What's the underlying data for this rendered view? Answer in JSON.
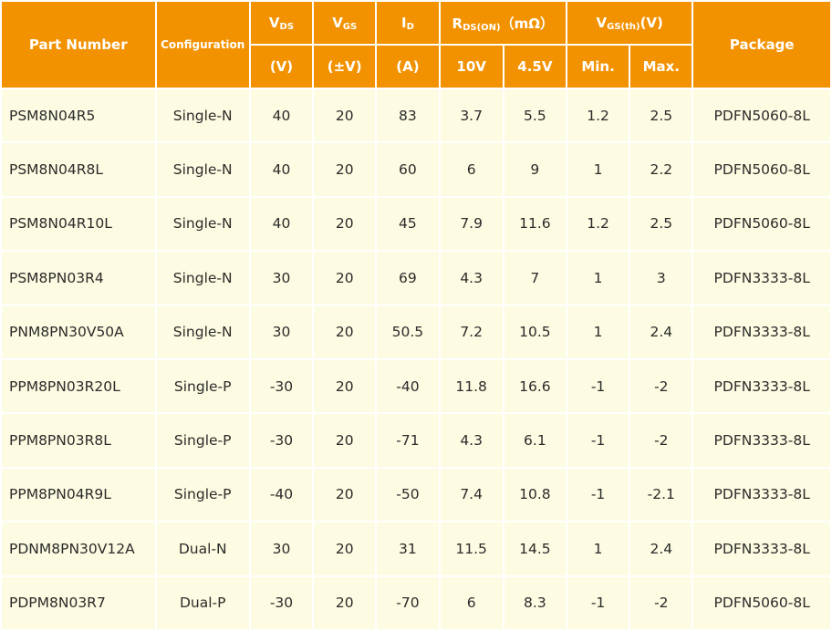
{
  "header": {
    "part_number": "Part Number",
    "configuration": "Configuration",
    "vds": {
      "main": "V",
      "sub": "DS",
      "unit": "(V)"
    },
    "vgs": {
      "main": "V",
      "sub": "GS",
      "unit": "(±V)"
    },
    "id": {
      "main": "I",
      "sub": "D",
      "unit": "(A)"
    },
    "rds": {
      "main": "R",
      "sub": "DS(ON)",
      "suffix": "（mΩ）",
      "col_10v": "10V",
      "col_45v": "4.5V"
    },
    "vgsth": {
      "main": "V",
      "sub": "GS(th)",
      "suffix": "(V)",
      "min": "Min.",
      "max": "Max."
    },
    "package": "Package"
  },
  "rows": [
    {
      "part": "PSM8N04R5",
      "config": "Single-N",
      "vds": "40",
      "vgs": "20",
      "id": "83",
      "r10": "3.7",
      "r45": "5.5",
      "vmin": "1.2",
      "vmax": "2.5",
      "pkg": "PDFN5060-8L"
    },
    {
      "part": "PSM8N04R8L",
      "config": "Single-N",
      "vds": "40",
      "vgs": "20",
      "id": "60",
      "r10": "6",
      "r45": "9",
      "vmin": "1",
      "vmax": "2.2",
      "pkg": "PDFN5060-8L"
    },
    {
      "part": "PSM8N04R10L",
      "config": "Single-N",
      "vds": "40",
      "vgs": "20",
      "id": "45",
      "r10": "7.9",
      "r45": "11.6",
      "vmin": "1.2",
      "vmax": "2.5",
      "pkg": "PDFN5060-8L"
    },
    {
      "part": "PSM8PN03R4",
      "config": "Single-N",
      "vds": "30",
      "vgs": "20",
      "id": "69",
      "r10": "4.3",
      "r45": "7",
      "vmin": "1",
      "vmax": "3",
      "pkg": "PDFN3333-8L"
    },
    {
      "part": "PNM8PN30V50A",
      "config": "Single-N",
      "vds": "30",
      "vgs": "20",
      "id": "50.5",
      "r10": "7.2",
      "r45": "10.5",
      "vmin": "1",
      "vmax": "2.4",
      "pkg": "PDFN3333-8L"
    },
    {
      "part": "PPM8PN03R20L",
      "config": "Single-P",
      "vds": "-30",
      "vgs": "20",
      "id": "-40",
      "r10": "11.8",
      "r45": "16.6",
      "vmin": "-1",
      "vmax": "-2",
      "pkg": "PDFN3333-8L"
    },
    {
      "part": "PPM8PN03R8L",
      "config": "Single-P",
      "vds": "-30",
      "vgs": "20",
      "id": "-71",
      "r10": "4.3",
      "r45": "6.1",
      "vmin": "-1",
      "vmax": "-2",
      "pkg": "PDFN3333-8L"
    },
    {
      "part": "PPM8PN04R9L",
      "config": "Single-P",
      "vds": "-40",
      "vgs": "20",
      "id": "-50",
      "r10": "7.4",
      "r45": "10.8",
      "vmin": "-1",
      "vmax": "-2.1",
      "pkg": "PDFN3333-8L"
    },
    {
      "part": "PDNM8PN30V12A",
      "config": "Dual-N",
      "vds": "30",
      "vgs": "20",
      "id": "31",
      "r10": "11.5",
      "r45": "14.5",
      "vmin": "1",
      "vmax": "2.4",
      "pkg": "PDFN3333-8L"
    },
    {
      "part": "PDPM8N03R7",
      "config": "Dual-P",
      "vds": "-30",
      "vgs": "20",
      "id": "-70",
      "r10": "6",
      "r45": "8.3",
      "vmin": "-1",
      "vmax": "-2",
      "pkg": "PDFN5060-8L"
    }
  ],
  "colors": {
    "header_bg": "#f39200",
    "header_text": "#ffffff",
    "cell_bg": "#fdfbe1",
    "cell_text": "#2b2b2b"
  }
}
